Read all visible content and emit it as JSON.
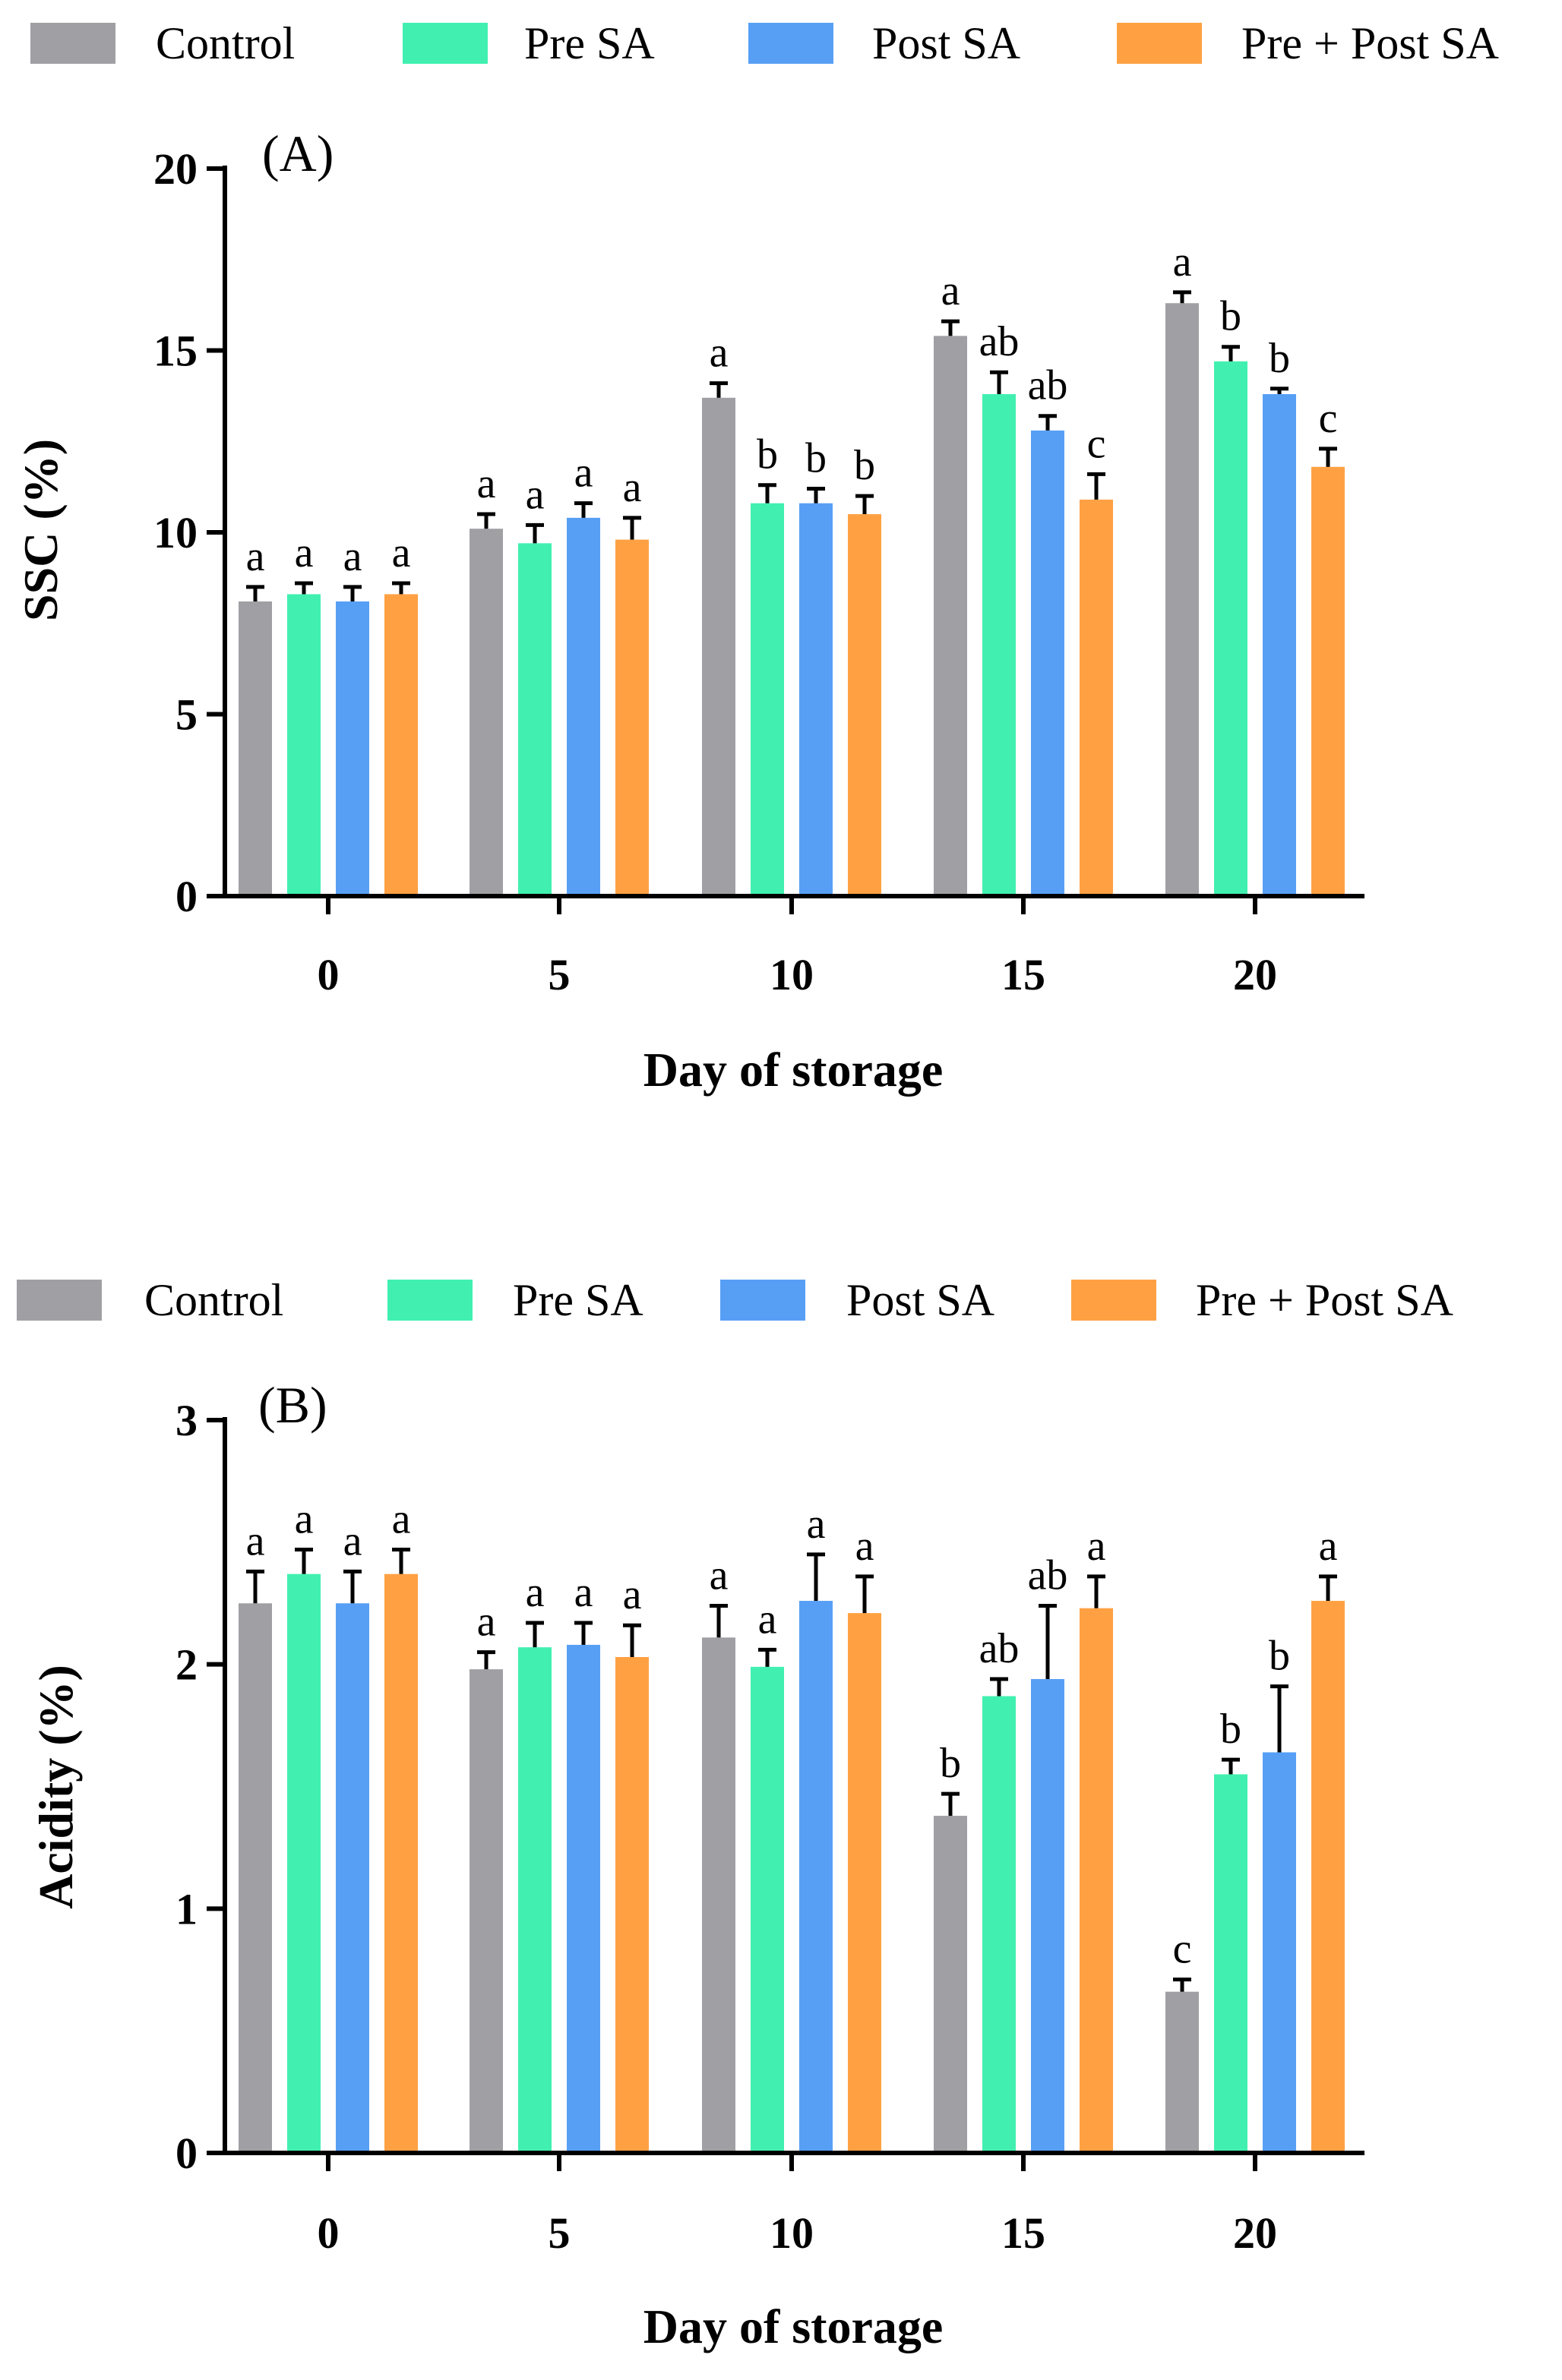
{
  "chart_data": [
    {
      "type": "bar",
      "panel": "(A)",
      "ylabel": "SSC (%)",
      "xlabel": "Day of storage",
      "ylim": [
        0,
        20
      ],
      "yticks": [
        "0",
        "5",
        "10",
        "15",
        "20"
      ],
      "categories": [
        "0",
        "5",
        "10",
        "15",
        "20"
      ],
      "legend": [
        "Control",
        "Pre SA",
        "Post SA",
        "Pre + Post SA"
      ],
      "series": [
        {
          "name": "Control",
          "color": "#a0a0a4",
          "values": [
            8.1,
            10.1,
            13.7,
            15.4,
            16.3
          ],
          "errors": [
            0.4,
            0.4,
            0.4,
            0.4,
            0.3
          ],
          "labels": [
            "a",
            "a",
            "a",
            "a",
            "a"
          ]
        },
        {
          "name": "Pre SA",
          "color": "#41f0b0",
          "values": [
            8.3,
            9.7,
            10.8,
            13.8,
            14.7
          ],
          "errors": [
            0.3,
            0.5,
            0.5,
            0.6,
            0.4
          ],
          "labels": [
            "a",
            "a",
            "b",
            "ab",
            "b"
          ]
        },
        {
          "name": "Post SA",
          "color": "#579ff5",
          "values": [
            8.1,
            10.4,
            10.8,
            12.8,
            13.8
          ],
          "errors": [
            0.4,
            0.4,
            0.4,
            0.4,
            0.15
          ],
          "labels": [
            "a",
            "a",
            "b",
            "ab",
            "b"
          ]
        },
        {
          "name": "Pre + Post SA",
          "color": "#ffa143",
          "values": [
            8.3,
            9.8,
            10.5,
            10.9,
            11.8
          ],
          "errors": [
            0.3,
            0.6,
            0.5,
            0.7,
            0.5
          ],
          "labels": [
            "a",
            "a",
            "b",
            "c",
            "c"
          ]
        }
      ]
    },
    {
      "type": "bar",
      "panel": "(B)",
      "ylabel": "Acidity (%)",
      "xlabel": "Day of storage",
      "ylim": [
        0,
        3
      ],
      "yticks": [
        "0",
        "1",
        "2",
        "3"
      ],
      "categories": [
        "0",
        "5",
        "10",
        "15",
        "20"
      ],
      "legend": [
        "Control",
        "Pre SA",
        "Post SA",
        "Pre + Post SA"
      ],
      "series": [
        {
          "name": "Control",
          "color": "#a0a0a4",
          "values": [
            2.25,
            1.98,
            2.11,
            1.38,
            0.66
          ],
          "errors": [
            0.13,
            0.07,
            0.13,
            0.09,
            0.05
          ],
          "labels": [
            "a",
            "a",
            "a",
            "b",
            "c"
          ]
        },
        {
          "name": "Pre SA",
          "color": "#41f0b0",
          "values": [
            2.37,
            2.07,
            1.99,
            1.87,
            1.55
          ],
          "errors": [
            0.1,
            0.1,
            0.07,
            0.07,
            0.06
          ],
          "labels": [
            "a",
            "a",
            "a",
            "ab",
            "b"
          ]
        },
        {
          "name": "Post SA",
          "color": "#579ff5",
          "values": [
            2.25,
            2.08,
            2.26,
            1.94,
            1.64
          ],
          "errors": [
            0.13,
            0.09,
            0.19,
            0.3,
            0.27
          ],
          "labels": [
            "a",
            "a",
            "a",
            "ab",
            "b"
          ]
        },
        {
          "name": "Pre + Post SA",
          "color": "#ffa143",
          "values": [
            2.37,
            2.03,
            2.21,
            2.23,
            2.26
          ],
          "errors": [
            0.1,
            0.13,
            0.15,
            0.13,
            0.1
          ],
          "labels": [
            "a",
            "a",
            "a",
            "a",
            "a"
          ]
        }
      ]
    }
  ]
}
